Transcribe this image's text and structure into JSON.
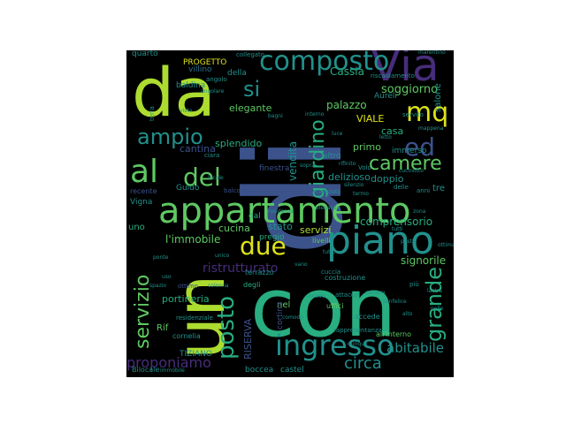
{
  "palette": {
    "yellow": "#dde318",
    "lime": "#addc30",
    "green": "#5ec962",
    "teal": "#28ae80",
    "aqua": "#21918c",
    "blue": "#2c728e",
    "indigo": "#3b528b",
    "purple": "#472d7b",
    "violet": "#440154"
  },
  "words": {
    "di": "di",
    "con": "con",
    "un": "un",
    "da": "da",
    "appartamento": "appartamento",
    "piano": "piano",
    "via": "Via",
    "composto": "composto",
    "ingresso": "ingresso",
    "mq": "mq",
    "al": "al",
    "del": "del",
    "ampio": "ampio",
    "si": "si",
    "due": "due",
    "ed": "ed",
    "camere": "camere",
    "giardino": "giardino",
    "posto": "posto",
    "servizio": "servizio",
    "grande": "grande",
    "circa": "circa",
    "abitabile": "abitabile",
    "proponiamo": "proponiamo",
    "ristrutturato": "ristrutturato",
    "immobile": "l'immobile",
    "cucina": "cucina",
    "stato": "stato",
    "servizi": "servizi",
    "comprensorio": "comprensorio",
    "signorile": "signorile",
    "ville": "ville",
    "soggiorno": "soggiorno",
    "salone": "salone",
    "palazzo": "palazzo",
    "elegante": "elegante",
    "cantina": "cantina",
    "splendido": "splendido",
    "vendita": "vendita",
    "viale": "VIALE",
    "primo": "primo",
    "doppio": "doppio",
    "delizioso": "delizioso",
    "casa": "casa",
    "tre": "tre",
    "progetto": "PROGETTO",
    "riserva": "RISERVA",
    "portineria": "portineria",
    "rif": "Rif",
    "dal": "dal",
    "pregio": "pregio",
    "nel": "nel",
    "cortina": "cortina",
    "della": "della",
    "guido": "Guido",
    "vigna": "Vigna",
    "uno": "uno",
    "quarto": "quarto",
    "cassia": "Cassia",
    "boccea": "boccea",
    "castel": "castel",
    "tiziano": "TIZIANO",
    "villino": "villino",
    "terrazzo": "terrazzo",
    "uffici": "uffici",
    "accede": "accede",
    "altro": "altro",
    "immerso": "immerso",
    "finestra": "finestra",
    "degli": "degli",
    "livelli": "livelli",
    "costruzione": "costruzione",
    "angolo": "angolo",
    "baldina": "baldina",
    "collegato": "collegato",
    "riscaldamento": "riscaldamento",
    "cornelia": "cornelia",
    "bilocale": "Bilocale",
    "interno": "all'interno",
    "recente": "recente",
    "balcone": "balcone",
    "attacco": "attacco",
    "cuccia": "cuccia",
    "piu": "più",
    "delle": "delle",
    "anni": "anni",
    "servito": "servito",
    "ciara": "ciara",
    "residenziale": "residenziale",
    "rappresentanza": "rappresentanza",
    "comodo": "comodo",
    "aureli": "Aureli",
    "dunque": "dunque",
    "unico": "unico",
    "ottimo": "ottimo",
    "angolare": "angolare",
    "nelle": "nelle",
    "eleganza": "eleganza",
    "silenzio": "silenzio",
    "residenza": "residenza",
    "marentino": "marentino",
    "immobile2": "immobile",
    "tutti": "tutti",
    "terra": "terra",
    "intern": "interno",
    "cucin": "cucinotto",
    "mappena": "mappena",
    "tutto": "tutto",
    "vano": "vano",
    "ponte": "ponte",
    "completo": "completo",
    "termo": "termo",
    "rifinito": "rifinito",
    "posti": "posti",
    "lastra": "lastra",
    "sanfelice": "sanfelice",
    "colonna": "colonna",
    "camera": "camera",
    "vol": "Volo",
    "sopra": "sopra",
    "uso": "uso",
    "luce": "luce",
    "letto": "letto",
    "ottima": "ottima",
    "bagni": "bagni",
    "locale": "locale",
    "spazio": "spazio",
    "alto": "alto",
    "nuovo": "nuovo",
    "vista": "vista",
    "zona": "zona"
  }
}
